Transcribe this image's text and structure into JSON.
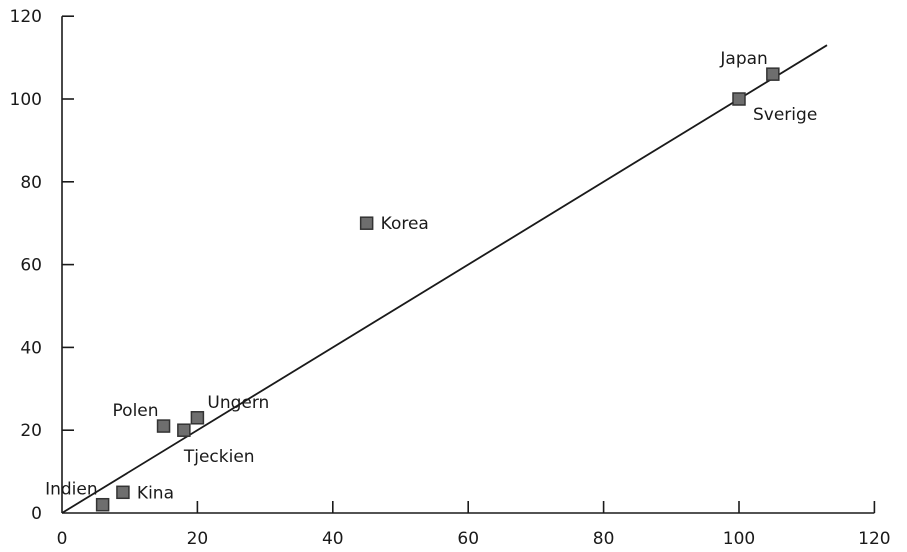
{
  "chart_data": {
    "type": "scatter",
    "title": "",
    "xlabel": "",
    "ylabel": "",
    "xlim": [
      0,
      120
    ],
    "ylim": [
      0,
      120
    ],
    "x_ticks": [
      0,
      20,
      40,
      60,
      80,
      100,
      120
    ],
    "y_ticks": [
      0,
      20,
      40,
      60,
      80,
      100,
      120
    ],
    "grid": false,
    "marker_color": "#6e6e6e",
    "marker_shape": "square",
    "points": [
      {
        "label": "Indien",
        "x": 6,
        "y": 2,
        "label_pos": "top-left"
      },
      {
        "label": "Kina",
        "x": 9,
        "y": 5,
        "label_pos": "right"
      },
      {
        "label": "Polen",
        "x": 15,
        "y": 21,
        "label_pos": "top-left"
      },
      {
        "label": "Tjeckien",
        "x": 18,
        "y": 20,
        "label_pos": "bottom"
      },
      {
        "label": "Ungern",
        "x": 20,
        "y": 23,
        "label_pos": "top-right"
      },
      {
        "label": "Korea",
        "x": 45,
        "y": 70,
        "label_pos": "right"
      },
      {
        "label": "Sverige",
        "x": 100,
        "y": 100,
        "label_pos": "bottom-right"
      },
      {
        "label": "Japan",
        "x": 105,
        "y": 106,
        "label_pos": "top-left"
      }
    ],
    "trend_line": {
      "from": [
        0,
        0
      ],
      "to": [
        113,
        113
      ]
    }
  }
}
